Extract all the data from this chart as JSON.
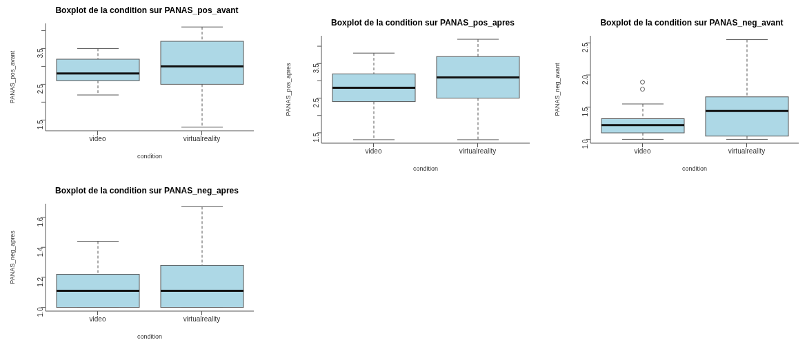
{
  "chart_data": [
    {
      "type": "box",
      "title": "Boxplot de la condition sur PANAS_pos_avant",
      "xlabel": "condition",
      "ylabel": "PANAS_pos_avant",
      "categories": [
        "video",
        "virtualreality"
      ],
      "color": "#add8e6",
      "ylim": [
        1.2,
        4.2
      ],
      "yticks": [
        1.5,
        {
          "value": 2,
          "label": null
        },
        2.5,
        {
          "value": 3,
          "label": null
        },
        3.5,
        {
          "value": 4,
          "label": null
        }
      ],
      "boxes": [
        {
          "low": 2.2,
          "q1": 2.6,
          "median": 2.8,
          "q3": 3.2,
          "high": 3.5
        },
        {
          "low": 1.3,
          "q1": 2.5,
          "median": 3.0,
          "q3": 3.7,
          "high": 4.1
        }
      ]
    },
    {
      "type": "box",
      "title": "Boxplot de la condition sur PANAS_pos_apres",
      "xlabel": "condition",
      "ylabel": "PANAS_pos_apres",
      "categories": [
        "video",
        "virtualreality"
      ],
      "color": "#add8e6",
      "ylim": [
        1.2,
        4.3
      ],
      "yticks": [
        1.5,
        {
          "value": 2,
          "label": null
        },
        2.5,
        {
          "value": 3,
          "label": null
        },
        3.5,
        {
          "value": 4,
          "label": null
        }
      ],
      "boxes": [
        {
          "low": 1.3,
          "q1": 2.4,
          "median": 2.8,
          "q3": 3.2,
          "high": 3.8
        },
        {
          "low": 1.3,
          "q1": 2.5,
          "median": 3.1,
          "q3": 3.7,
          "high": 4.2
        }
      ]
    },
    {
      "type": "box",
      "title": "Boxplot de la condition sur PANAS_neg_avant",
      "xlabel": "condition",
      "ylabel": "PANAS_neg_avant",
      "categories": [
        "video",
        "virtualreality"
      ],
      "color": "#add8e6",
      "ylim": [
        0.94,
        2.61
      ],
      "yticks": [
        {
          "value": 1,
          "label": "1.0"
        },
        1.5,
        {
          "value": 2,
          "label": "2.0"
        },
        2.5
      ],
      "boxes": [
        {
          "low": 1.0,
          "q1": 1.1,
          "median": 1.22,
          "q3": 1.32,
          "high": 1.55,
          "outliers": [
            1.78,
            1.89
          ]
        },
        {
          "low": 1.0,
          "q1": 1.05,
          "median": 1.44,
          "q3": 1.66,
          "high": 2.55
        }
      ]
    },
    {
      "type": "box",
      "title": "Boxplot de la condition sur PANAS_neg_apres",
      "xlabel": "condition",
      "ylabel": "PANAS_neg_apres",
      "categories": [
        "video",
        "virtualreality"
      ],
      "color": "#add8e6",
      "ylim": [
        0.975,
        1.69
      ],
      "yticks": [
        {
          "value": 1,
          "label": "1.0"
        },
        1.2,
        1.4,
        1.6
      ],
      "boxes": [
        {
          "low": 1.0,
          "q1": 1.0,
          "median": 1.11,
          "q3": 1.22,
          "high": 1.44
        },
        {
          "low": 1.0,
          "q1": 1.0,
          "median": 1.11,
          "q3": 1.28,
          "high": 1.67
        }
      ]
    }
  ]
}
